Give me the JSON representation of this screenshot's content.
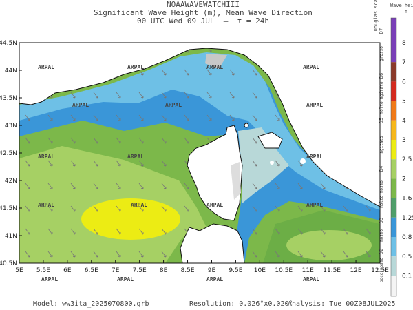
{
  "header": {
    "model_name": "NOAAWAVEWATCHIII",
    "title": "Significant Wave Height (m), Mean Wave Direction",
    "subtitle": "00 UTC Wed 09 JUL  —  τ = 24h"
  },
  "map": {
    "lat_labels": [
      "44.5N",
      "44N",
      "43.5N",
      "43N",
      "42.5N",
      "42N",
      "41.5N",
      "41N",
      "40.5N"
    ],
    "lon_labels": [
      "5E",
      "5.5E",
      "6E",
      "6.5E",
      "7E",
      "7.5E",
      "8E",
      "8.5E",
      "9E",
      "9.5E",
      "10E",
      "10.5E",
      "11E",
      "11.5E",
      "12E",
      "12.5E"
    ],
    "watermark": "ARPAL"
  },
  "colorbar": {
    "title": "Wave height",
    "unit": "m",
    "levels": [
      8,
      7,
      6,
      5,
      4,
      3,
      2.5,
      2,
      1.6,
      1.25,
      0.8,
      0.5,
      0.1
    ],
    "colors": [
      "#7a3fb8",
      "#8b3a2a",
      "#d42a1e",
      "#f07a18",
      "#f6b81c",
      "#ecec14",
      "#a6d064",
      "#7cb84a",
      "#4f9e6a",
      "#3a96d8",
      "#6ec0e6",
      "#b8d8d8",
      "#f4f4f4"
    ]
  },
  "douglas": {
    "title": "Douglas scale",
    "classes": [
      "D7",
      "D6",
      "D5",
      "D4",
      "D3",
      "D2"
    ],
    "descriptions": [
      "grosso",
      "molto agitato",
      "agitato",
      "molto mosso",
      "mosso",
      "poco mosso"
    ]
  },
  "footer": {
    "model": "Model: ww3ita_2025070800.grb",
    "resolution": "Resolution: 0.026°x0.020°",
    "analysis": "Analysis: Tue 00Z08JUL2025"
  }
}
